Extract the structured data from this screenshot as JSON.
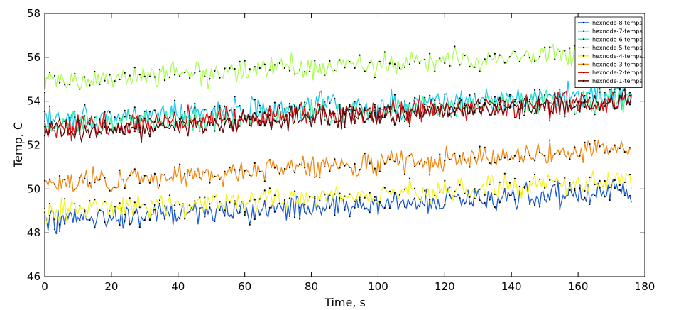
{
  "chart_data": {
    "type": "line",
    "title": "",
    "xlabel": "Time, s",
    "ylabel": "Temp, C",
    "xlim": [
      0,
      180
    ],
    "ylim": [
      46,
      58
    ],
    "xticks": [
      0,
      20,
      40,
      60,
      80,
      100,
      120,
      140,
      160,
      180
    ],
    "yticks": [
      46,
      48,
      50,
      52,
      54,
      56,
      58
    ],
    "grid": false,
    "legend_position": "top-right",
    "sample_interval_s": 0.5,
    "x_range_s": [
      0,
      176
    ],
    "series": [
      {
        "name": "hexnode-8-temps",
        "color": "#1f5fd6",
        "trend_start": 48.6,
        "trend_end": 49.9,
        "noise": 0.45,
        "seed": 8
      },
      {
        "name": "hexnode-7-temps",
        "color": "#1ec8ee",
        "trend_start": 53.1,
        "trend_end": 54.3,
        "noise": 0.45,
        "seed": 7
      },
      {
        "name": "hexnode-6-temps",
        "color": "#3cf0a6",
        "trend_start": 52.9,
        "trend_end": 54.1,
        "noise": 0.4,
        "seed": 6
      },
      {
        "name": "hexnode-5-temps",
        "color": "#aaff55",
        "trend_start": 54.9,
        "trend_end": 56.3,
        "noise": 0.4,
        "seed": 5
      },
      {
        "name": "hexnode-4-temps",
        "color": "#f5f528",
        "trend_start": 49.0,
        "trend_end": 50.4,
        "noise": 0.4,
        "seed": 4
      },
      {
        "name": "hexnode-3-temps",
        "color": "#f28a17",
        "trend_start": 50.2,
        "trend_end": 51.9,
        "noise": 0.4,
        "seed": 3
      },
      {
        "name": "hexnode-2-temps",
        "color": "#e01010",
        "trend_start": 52.8,
        "trend_end": 54.0,
        "noise": 0.45,
        "seed": 2
      },
      {
        "name": "hexnode-1-temps",
        "color": "#6b0a0a",
        "trend_start": 52.6,
        "trend_end": 53.9,
        "noise": 0.4,
        "seed": 1
      }
    ]
  }
}
